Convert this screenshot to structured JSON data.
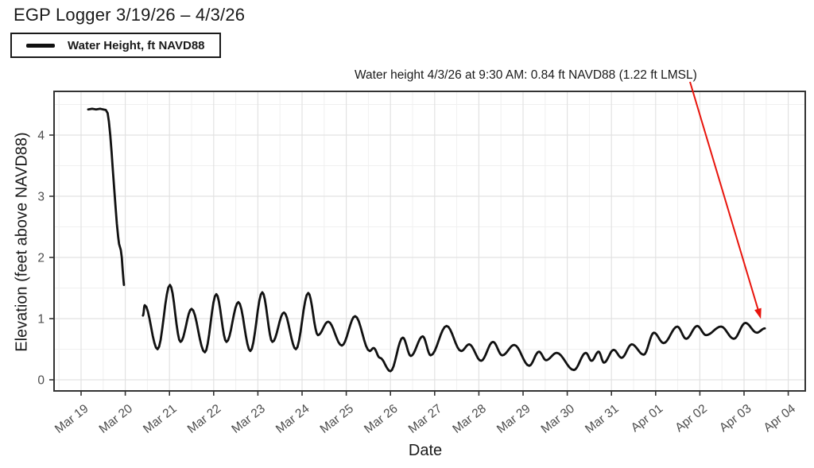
{
  "title": "EGP Logger 3/19/26 – 4/3/26",
  "legend": {
    "label": "Water Height, ft NAVD88"
  },
  "annotation": {
    "text": "Water height 4/3/26 at 9:30 AM: 0.84 ft NAVD88 (1.22 ft LMSL)",
    "arrow_color": "#e8140c"
  },
  "colors": {
    "line": "#111111",
    "grid_major": "#e2e2e2",
    "grid_minor": "#f0f0f0",
    "panel_border": "#333333",
    "tick_mark": "#333333",
    "tick_label": "#4d4d4d",
    "axis_title": "#1a1a1a",
    "background": "#ffffff"
  },
  "chart_data": {
    "type": "line",
    "title": "EGP Logger 3/19/26 – 4/3/26",
    "xlabel": "Date",
    "ylabel": "Elevation (feet above NAVD88)",
    "x_tick_labels": [
      "Mar 19",
      "Mar 20",
      "Mar 21",
      "Mar 22",
      "Mar 23",
      "Mar 24",
      "Mar 25",
      "Mar 26",
      "Mar 27",
      "Mar 28",
      "Mar 29",
      "Mar 30",
      "Mar 31",
      "Apr 01",
      "Apr 02",
      "Apr 03",
      "Apr 04"
    ],
    "y_tick_labels": [
      "0",
      "1",
      "2",
      "3",
      "4"
    ],
    "y_ticks": [
      0,
      1,
      2,
      3,
      4
    ],
    "ylim": [
      -0.18,
      4.71
    ],
    "xlim_days": [
      -0.61,
      16.38
    ],
    "grid": true,
    "legend_position": "top-left-outside",
    "x_unit": "days since Mar 19 00:00",
    "series": [
      {
        "name": "Water Height, ft NAVD88",
        "color": "#111111",
        "segments": [
          {
            "mode": "linear",
            "points": [
              [
                0.16,
                4.42
              ],
              [
                0.25,
                4.43
              ],
              [
                0.34,
                4.42
              ],
              [
                0.43,
                4.43
              ],
              [
                0.5,
                4.42
              ],
              [
                0.56,
                4.41
              ],
              [
                0.6,
                4.36
              ],
              [
                0.63,
                4.22
              ],
              [
                0.66,
                4.0
              ],
              [
                0.69,
                3.72
              ],
              [
                0.72,
                3.42
              ],
              [
                0.75,
                3.12
              ],
              [
                0.78,
                2.82
              ],
              [
                0.81,
                2.55
              ],
              [
                0.84,
                2.33
              ],
              [
                0.86,
                2.22
              ],
              [
                0.88,
                2.17
              ],
              [
                0.9,
                2.12
              ],
              [
                0.92,
                2.0
              ],
              [
                0.94,
                1.8
              ],
              [
                0.96,
                1.62
              ],
              [
                0.97,
                1.55
              ]
            ]
          },
          {
            "mode": "smooth-extrema",
            "points": [
              [
                1.4,
                1.05
              ],
              [
                1.44,
                1.22
              ],
              [
                1.73,
                0.5
              ],
              [
                2.01,
                1.55
              ],
              [
                2.25,
                0.62
              ],
              [
                2.5,
                1.16
              ],
              [
                2.8,
                0.45
              ],
              [
                3.06,
                1.4
              ],
              [
                3.29,
                0.62
              ],
              [
                3.56,
                1.27
              ],
              [
                3.83,
                0.47
              ],
              [
                4.1,
                1.43
              ],
              [
                4.33,
                0.62
              ],
              [
                4.59,
                1.1
              ],
              [
                4.86,
                0.5
              ],
              [
                5.14,
                1.42
              ],
              [
                5.36,
                0.73
              ],
              [
                5.59,
                0.95
              ],
              [
                5.9,
                0.56
              ],
              [
                6.2,
                1.04
              ],
              [
                6.53,
                0.47
              ],
              [
                6.62,
                0.52
              ],
              [
                6.76,
                0.36
              ],
              [
                7.0,
                0.14
              ],
              [
                7.28,
                0.69
              ],
              [
                7.46,
                0.39
              ],
              [
                7.73,
                0.71
              ],
              [
                7.91,
                0.4
              ],
              [
                8.27,
                0.88
              ],
              [
                8.6,
                0.47
              ],
              [
                8.78,
                0.58
              ],
              [
                9.05,
                0.31
              ],
              [
                9.32,
                0.62
              ],
              [
                9.53,
                0.4
              ],
              [
                9.8,
                0.57
              ],
              [
                10.14,
                0.23
              ],
              [
                10.36,
                0.46
              ],
              [
                10.52,
                0.32
              ],
              [
                10.76,
                0.44
              ],
              [
                11.15,
                0.16
              ],
              [
                11.42,
                0.44
              ],
              [
                11.55,
                0.31
              ],
              [
                11.71,
                0.46
              ],
              [
                11.83,
                0.28
              ],
              [
                12.05,
                0.49
              ],
              [
                12.23,
                0.36
              ],
              [
                12.46,
                0.58
              ],
              [
                12.73,
                0.41
              ],
              [
                12.96,
                0.77
              ],
              [
                13.18,
                0.6
              ],
              [
                13.49,
                0.87
              ],
              [
                13.69,
                0.67
              ],
              [
                13.94,
                0.88
              ],
              [
                14.14,
                0.73
              ],
              [
                14.48,
                0.87
              ],
              [
                14.77,
                0.67
              ],
              [
                15.03,
                0.93
              ],
              [
                15.29,
                0.77
              ],
              [
                15.47,
                0.84
              ]
            ]
          }
        ]
      }
    ],
    "annotation_point": {
      "label": "Water height 4/3/26 at 9:30 AM: 0.84 ft NAVD88 (1.22 ft LMSL)",
      "date": "4/3/26 9:30 AM",
      "value_ft_navd88": 0.84,
      "value_ft_lmsl": 1.22
    }
  }
}
